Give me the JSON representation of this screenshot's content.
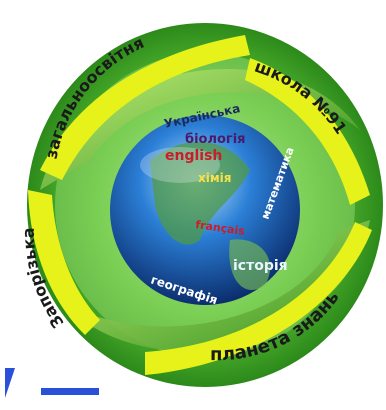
{
  "ring": {
    "top_left": "загальноосвітня",
    "top_right": "школа №91",
    "left": "Запорізька",
    "right": "планета знань",
    "bottom": "планета"
  },
  "globe_words": {
    "ukrainian": "Українська",
    "biology": "біологія",
    "english": "english",
    "chemistry": "хімія",
    "math": "математика",
    "francais": "français",
    "history": "історія",
    "geography": "географія"
  },
  "colors": {
    "ring_green": "#3aa31b",
    "ring_light": "#a7e05a",
    "label_yellow": "#e6f21a",
    "accent_blue": "#2a4fd8",
    "globe_blue": "#1a66c7"
  }
}
